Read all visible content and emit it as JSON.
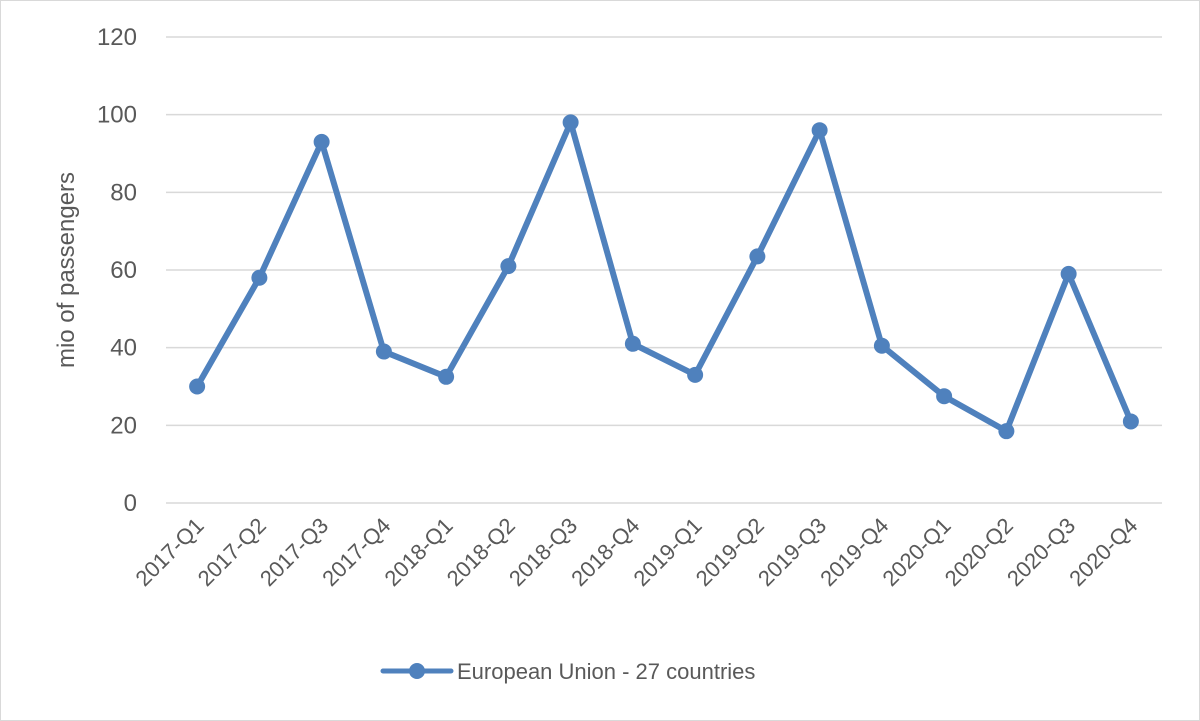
{
  "chart_data": {
    "type": "line",
    "title": "",
    "xlabel": "",
    "ylabel": "mio of passengers",
    "ylim": [
      0,
      120
    ],
    "yticks": [
      0,
      20,
      40,
      60,
      80,
      100,
      120
    ],
    "grid": true,
    "legend_position": "bottom",
    "categories": [
      "2017-Q1",
      "2017-Q2",
      "2017-Q3",
      "2017-Q4",
      "2018-Q1",
      "2018-Q2",
      "2018-Q3",
      "2018-Q4",
      "2019-Q1",
      "2019-Q2",
      "2019-Q3",
      "2019-Q4",
      "2020-Q1",
      "2020-Q2",
      "2020-Q3",
      "2020-Q4"
    ],
    "series": [
      {
        "name": "European Union - 27 countries",
        "color": "#4f81bd",
        "values": [
          30,
          58,
          93,
          39,
          32.5,
          61,
          98,
          41,
          33,
          63.5,
          96,
          40.5,
          27.5,
          18.5,
          59,
          21
        ]
      }
    ]
  }
}
